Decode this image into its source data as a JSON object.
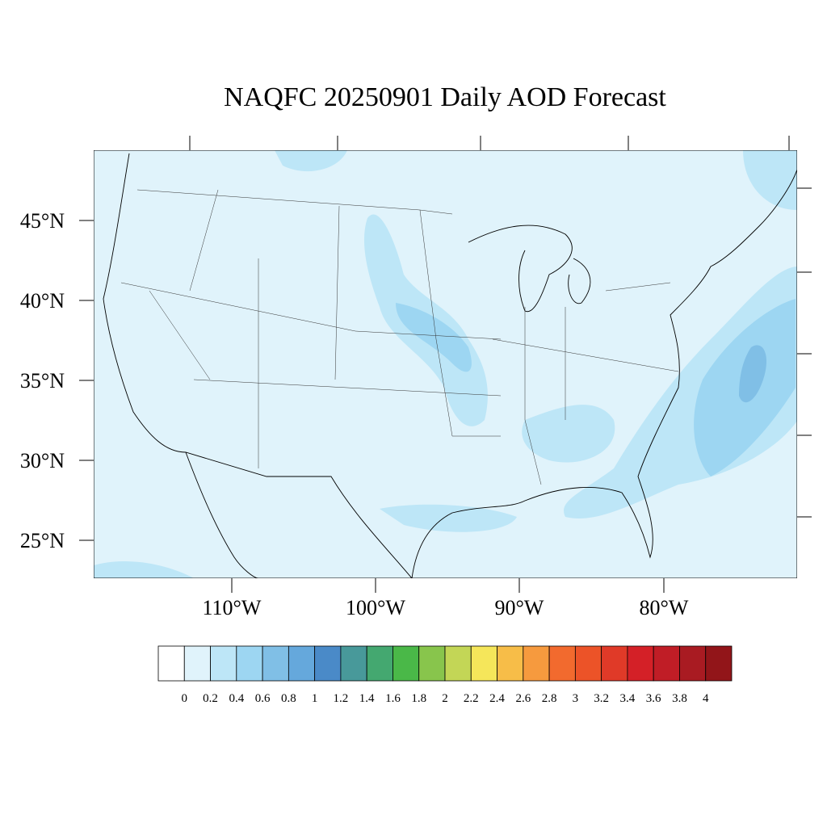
{
  "title": "NAQFC 20250901 Daily AOD Forecast",
  "lat_labels": [
    "45°N",
    "40°N",
    "35°N",
    "30°N",
    "25°N"
  ],
  "lon_labels": [
    "110°W",
    "100°W",
    "90°W",
    "80°W"
  ],
  "colorbar": {
    "colors": [
      "#ffffff",
      "#e0f3fb",
      "#bde6f7",
      "#9dd6f2",
      "#80bfe6",
      "#65a8dc",
      "#4a8ac8",
      "#48999a",
      "#44a870",
      "#4ab848",
      "#88c54c",
      "#c3d656",
      "#f5e65a",
      "#f7bd48",
      "#f69a3e",
      "#f26a2e",
      "#ec5328",
      "#e03a28",
      "#d42027",
      "#c01d26",
      "#a91b22",
      "#921519"
    ],
    "labels": [
      0,
      0.2,
      0.4,
      0.6,
      0.8,
      1,
      1.2,
      1.4,
      1.6,
      1.8,
      2,
      2.2,
      2.4,
      2.6,
      2.8,
      3,
      3.2,
      3.4,
      3.6,
      3.8,
      4
    ]
  }
}
